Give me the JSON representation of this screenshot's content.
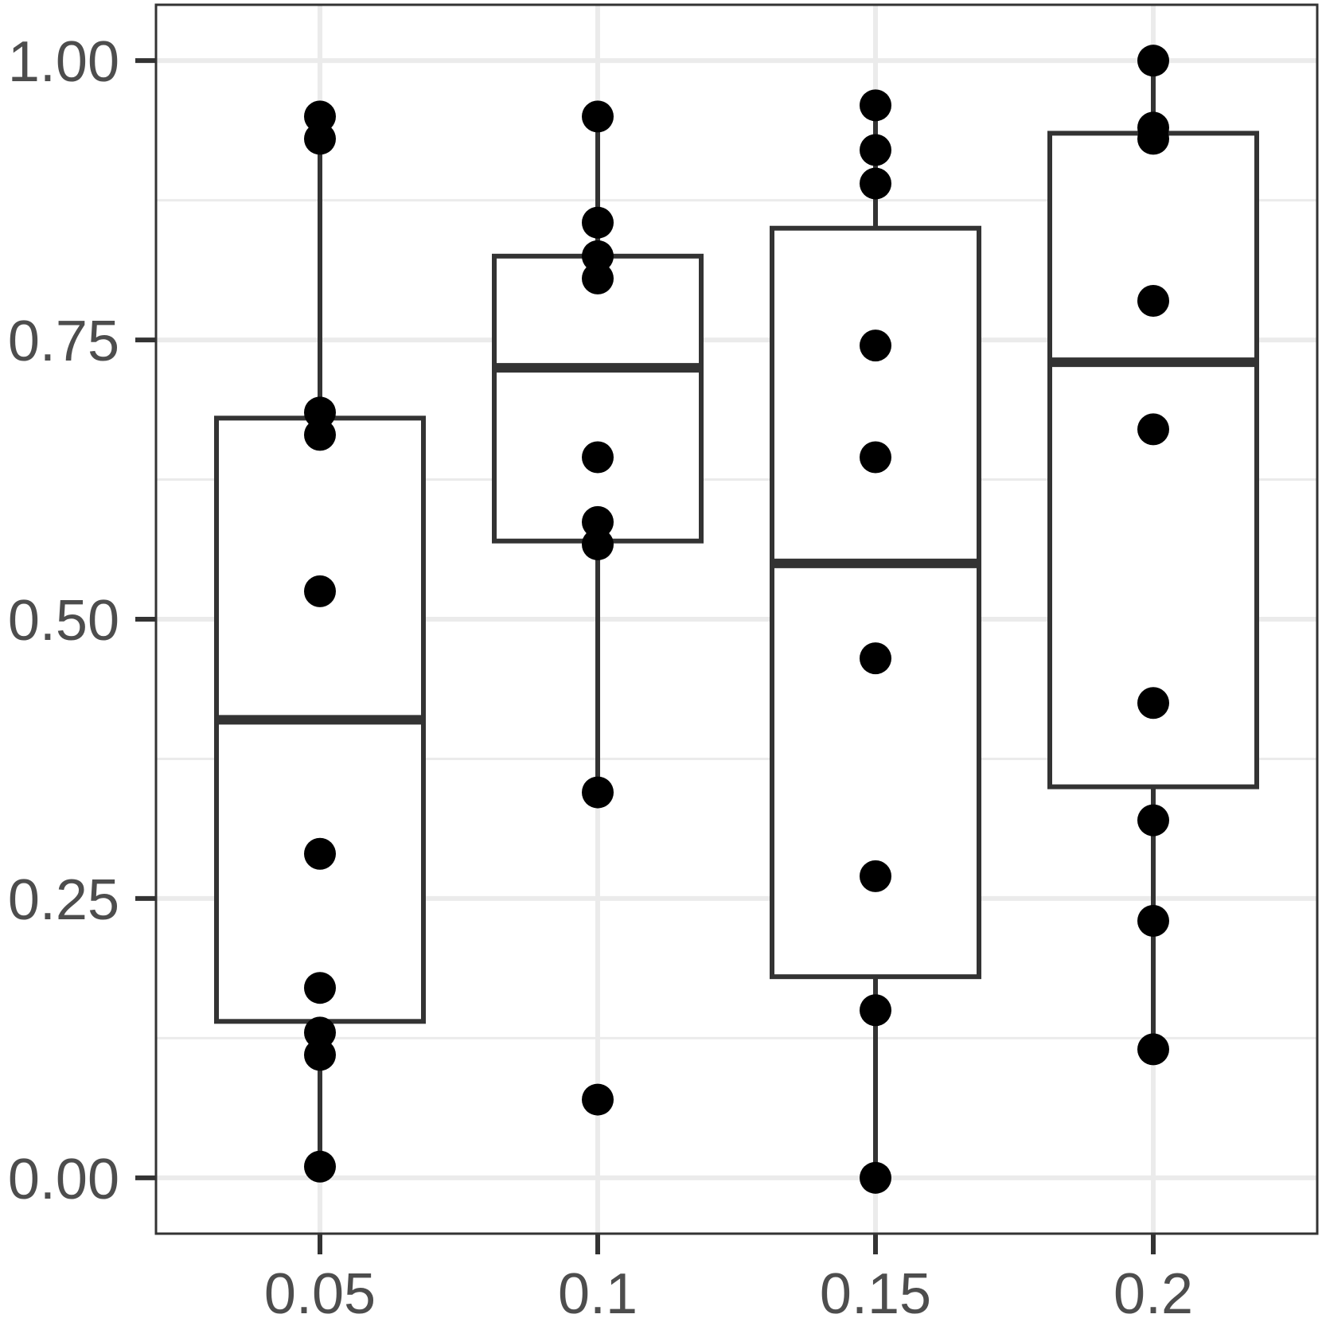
{
  "chart_data": {
    "type": "box",
    "title": "",
    "xlabel": "",
    "ylabel": "",
    "categories": [
      "0.05",
      "0.1",
      "0.15",
      "0.2"
    ],
    "ylim": [
      -0.05,
      1.05
    ],
    "y_ticks": [
      0.0,
      0.25,
      0.5,
      0.75,
      1.0
    ],
    "y_tick_labels": [
      "0.00",
      "0.25",
      "0.50",
      "0.75",
      "1.00"
    ],
    "grid": true,
    "legend": "none",
    "boxes": [
      {
        "category": "0.05",
        "whisker_low": 0.01,
        "q1": 0.14,
        "median": 0.41,
        "q3": 0.68,
        "whisker_high": 0.93
      },
      {
        "category": "0.1",
        "whisker_low": 0.345,
        "q1": 0.57,
        "median": 0.725,
        "q3": 0.825,
        "whisker_high": 0.95
      },
      {
        "category": "0.15",
        "whisker_low": 0.0,
        "q1": 0.18,
        "median": 0.55,
        "q3": 0.85,
        "whisker_high": 0.96
      },
      {
        "category": "0.2",
        "whisker_low": 0.115,
        "q1": 0.35,
        "median": 0.73,
        "q3": 0.935,
        "whisker_high": 1.0
      }
    ],
    "points": [
      {
        "category": "0.05",
        "values": [
          0.01,
          0.11,
          0.13,
          0.17,
          0.29,
          0.525,
          0.665,
          0.685,
          0.93,
          0.95
        ]
      },
      {
        "category": "0.1",
        "values": [
          0.07,
          0.345,
          0.567,
          0.587,
          0.645,
          0.805,
          0.825,
          0.855,
          0.95
        ]
      },
      {
        "category": "0.15",
        "values": [
          0.0,
          0.15,
          0.27,
          0.465,
          0.645,
          0.745,
          0.89,
          0.92,
          0.96
        ]
      },
      {
        "category": "0.2",
        "values": [
          0.115,
          0.23,
          0.32,
          0.425,
          0.67,
          0.785,
          0.93,
          0.94,
          1.0
        ]
      }
    ],
    "colors": {
      "box_stroke": "#333333",
      "point_fill": "#000000",
      "grid_major": "#ebebeb",
      "grid_minor": "#ebebeb",
      "axis_text": "#4d4d4d",
      "panel_border": "#333333"
    }
  }
}
